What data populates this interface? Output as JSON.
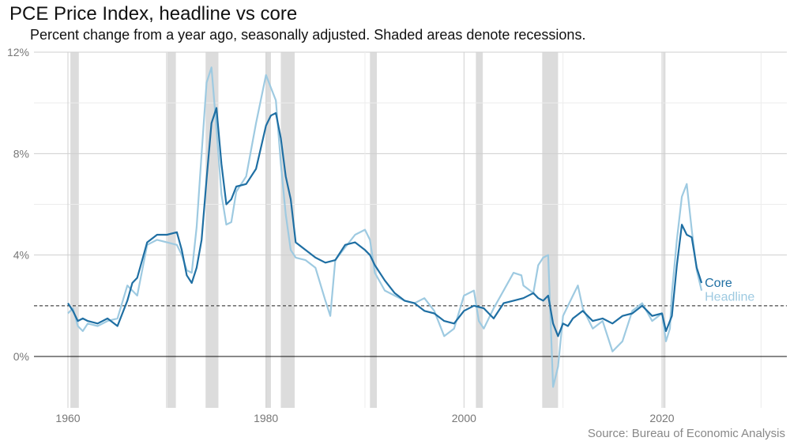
{
  "chart_data": {
    "type": "line",
    "title": "PCE Price Index, headline vs core",
    "subtitle": "Percent change from a year ago, seasonally adjusted. Shaded areas denote recessions.",
    "caption": "Source: Bureau of Economic Analysis",
    "xlabel": "",
    "ylabel": "",
    "xlim": [
      1958,
      2032
    ],
    "ylim": [
      -2,
      12
    ],
    "x_ticks": [
      {
        "value": 1960,
        "label": "1960"
      },
      {
        "value": 1980,
        "label": "1980"
      },
      {
        "value": 2000,
        "label": "2000"
      },
      {
        "value": 2020,
        "label": "2020"
      }
    ],
    "y_ticks": [
      {
        "value": 0,
        "label": "0%"
      },
      {
        "value": 4,
        "label": "4%"
      },
      {
        "value": 8,
        "label": "8%"
      },
      {
        "value": 12,
        "label": "12%"
      }
    ],
    "grid": true,
    "reference_line": {
      "value": 2,
      "style": "dashed"
    },
    "zero_line": {
      "value": 0
    },
    "recessions": [
      [
        1960.25,
        1961.1
      ],
      [
        1969.9,
        1970.9
      ],
      [
        1973.9,
        1975.2
      ],
      [
        1980.0,
        1980.5
      ],
      [
        1981.5,
        1982.9
      ],
      [
        1990.5,
        1991.2
      ],
      [
        2001.2,
        2001.9
      ],
      [
        2007.9,
        2009.5
      ],
      [
        2020.1,
        2020.35
      ]
    ],
    "series": [
      {
        "name": "Core",
        "color": "#1f6fa3",
        "x": [
          1960.0,
          1960.5,
          1961.0,
          1961.5,
          1962.0,
          1963.0,
          1964.0,
          1965.0,
          1966.0,
          1966.5,
          1967.0,
          1968.0,
          1969.0,
          1970.0,
          1971.0,
          1971.5,
          1972.0,
          1972.5,
          1973.0,
          1973.5,
          1974.0,
          1974.5,
          1975.0,
          1975.5,
          1976.0,
          1976.5,
          1977.0,
          1978.0,
          1979.0,
          1980.0,
          1980.5,
          1981.0,
          1981.5,
          1982.0,
          1982.5,
          1983.0,
          1984.0,
          1985.0,
          1986.0,
          1987.0,
          1988.0,
          1989.0,
          1990.0,
          1990.5,
          1991.0,
          1992.0,
          1993.0,
          1994.0,
          1995.0,
          1996.0,
          1997.0,
          1998.0,
          1999.0,
          2000.0,
          2001.0,
          2002.0,
          2003.0,
          2004.0,
          2005.0,
          2006.0,
          2007.0,
          2007.5,
          2008.0,
          2008.5,
          2009.0,
          2009.5,
          2010.0,
          2010.5,
          2011.0,
          2012.0,
          2013.0,
          2014.0,
          2015.0,
          2016.0,
          2017.0,
          2018.0,
          2019.0,
          2020.0,
          2020.4,
          2020.8,
          2021.0,
          2021.5,
          2022.0,
          2022.5,
          2023.0,
          2023.5,
          2024.0
        ],
        "values": [
          2.1,
          1.8,
          1.4,
          1.5,
          1.4,
          1.3,
          1.5,
          1.2,
          2.2,
          2.9,
          3.1,
          4.5,
          4.8,
          4.8,
          4.9,
          4.2,
          3.2,
          2.9,
          3.5,
          4.6,
          7.0,
          9.2,
          9.8,
          7.6,
          6.0,
          6.2,
          6.7,
          6.8,
          7.4,
          9.1,
          9.5,
          9.6,
          8.6,
          7.1,
          6.2,
          4.5,
          4.2,
          3.9,
          3.7,
          3.8,
          4.4,
          4.5,
          4.2,
          4.0,
          3.6,
          3.0,
          2.5,
          2.2,
          2.1,
          1.8,
          1.7,
          1.4,
          1.3,
          1.8,
          2.0,
          1.9,
          1.5,
          2.1,
          2.2,
          2.3,
          2.5,
          2.3,
          2.2,
          2.4,
          1.3,
          0.8,
          1.3,
          1.2,
          1.5,
          1.8,
          1.4,
          1.5,
          1.3,
          1.6,
          1.7,
          2.0,
          1.6,
          1.7,
          1.0,
          1.4,
          1.6,
          3.6,
          5.2,
          4.8,
          4.7,
          3.5,
          2.9
        ]
      },
      {
        "name": "Headline",
        "color": "#9ecae1",
        "x": [
          1960.0,
          1960.5,
          1961.0,
          1961.5,
          1962.0,
          1963.0,
          1964.0,
          1965.0,
          1966.0,
          1966.5,
          1967.0,
          1968.0,
          1969.0,
          1970.0,
          1971.0,
          1971.5,
          1972.0,
          1972.5,
          1973.0,
          1973.5,
          1974.0,
          1974.5,
          1975.0,
          1975.5,
          1976.0,
          1976.5,
          1977.0,
          1978.0,
          1979.0,
          1980.0,
          1980.5,
          1981.0,
          1981.5,
          1982.0,
          1982.5,
          1983.0,
          1984.0,
          1985.0,
          1986.0,
          1986.5,
          1987.0,
          1988.0,
          1989.0,
          1990.0,
          1990.5,
          1991.0,
          1992.0,
          1993.0,
          1994.0,
          1995.0,
          1996.0,
          1997.0,
          1998.0,
          1999.0,
          2000.0,
          2001.0,
          2001.5,
          2002.0,
          2003.0,
          2004.0,
          2005.0,
          2005.8,
          2006.0,
          2007.0,
          2007.5,
          2008.0,
          2008.5,
          2009.0,
          2009.5,
          2010.0,
          2011.0,
          2011.5,
          2012.0,
          2013.0,
          2014.0,
          2015.0,
          2016.0,
          2017.0,
          2018.0,
          2019.0,
          2020.0,
          2020.4,
          2020.8,
          2021.0,
          2021.5,
          2022.0,
          2022.5,
          2023.0,
          2023.5,
          2024.0
        ],
        "values": [
          1.7,
          1.9,
          1.2,
          1.0,
          1.3,
          1.2,
          1.4,
          1.5,
          2.8,
          2.6,
          2.4,
          4.4,
          4.6,
          4.5,
          4.4,
          4.0,
          3.4,
          3.3,
          5.1,
          8.0,
          10.8,
          11.4,
          9.0,
          6.4,
          5.2,
          5.3,
          6.5,
          7.1,
          9.2,
          11.1,
          10.6,
          10.1,
          7.6,
          5.6,
          4.2,
          3.9,
          3.8,
          3.5,
          2.2,
          1.6,
          3.8,
          4.3,
          4.8,
          5.0,
          4.6,
          3.3,
          2.6,
          2.4,
          2.2,
          2.1,
          2.3,
          1.8,
          0.8,
          1.1,
          2.4,
          2.6,
          1.4,
          1.1,
          1.9,
          2.6,
          3.3,
          3.2,
          2.8,
          2.5,
          3.6,
          3.9,
          4.0,
          -1.2,
          -0.4,
          1.6,
          2.4,
          2.8,
          1.9,
          1.1,
          1.4,
          0.2,
          0.6,
          1.8,
          2.1,
          1.4,
          1.7,
          0.6,
          1.1,
          2.5,
          4.6,
          6.3,
          6.8,
          5.0,
          3.4,
          2.6
        ]
      }
    ]
  }
}
